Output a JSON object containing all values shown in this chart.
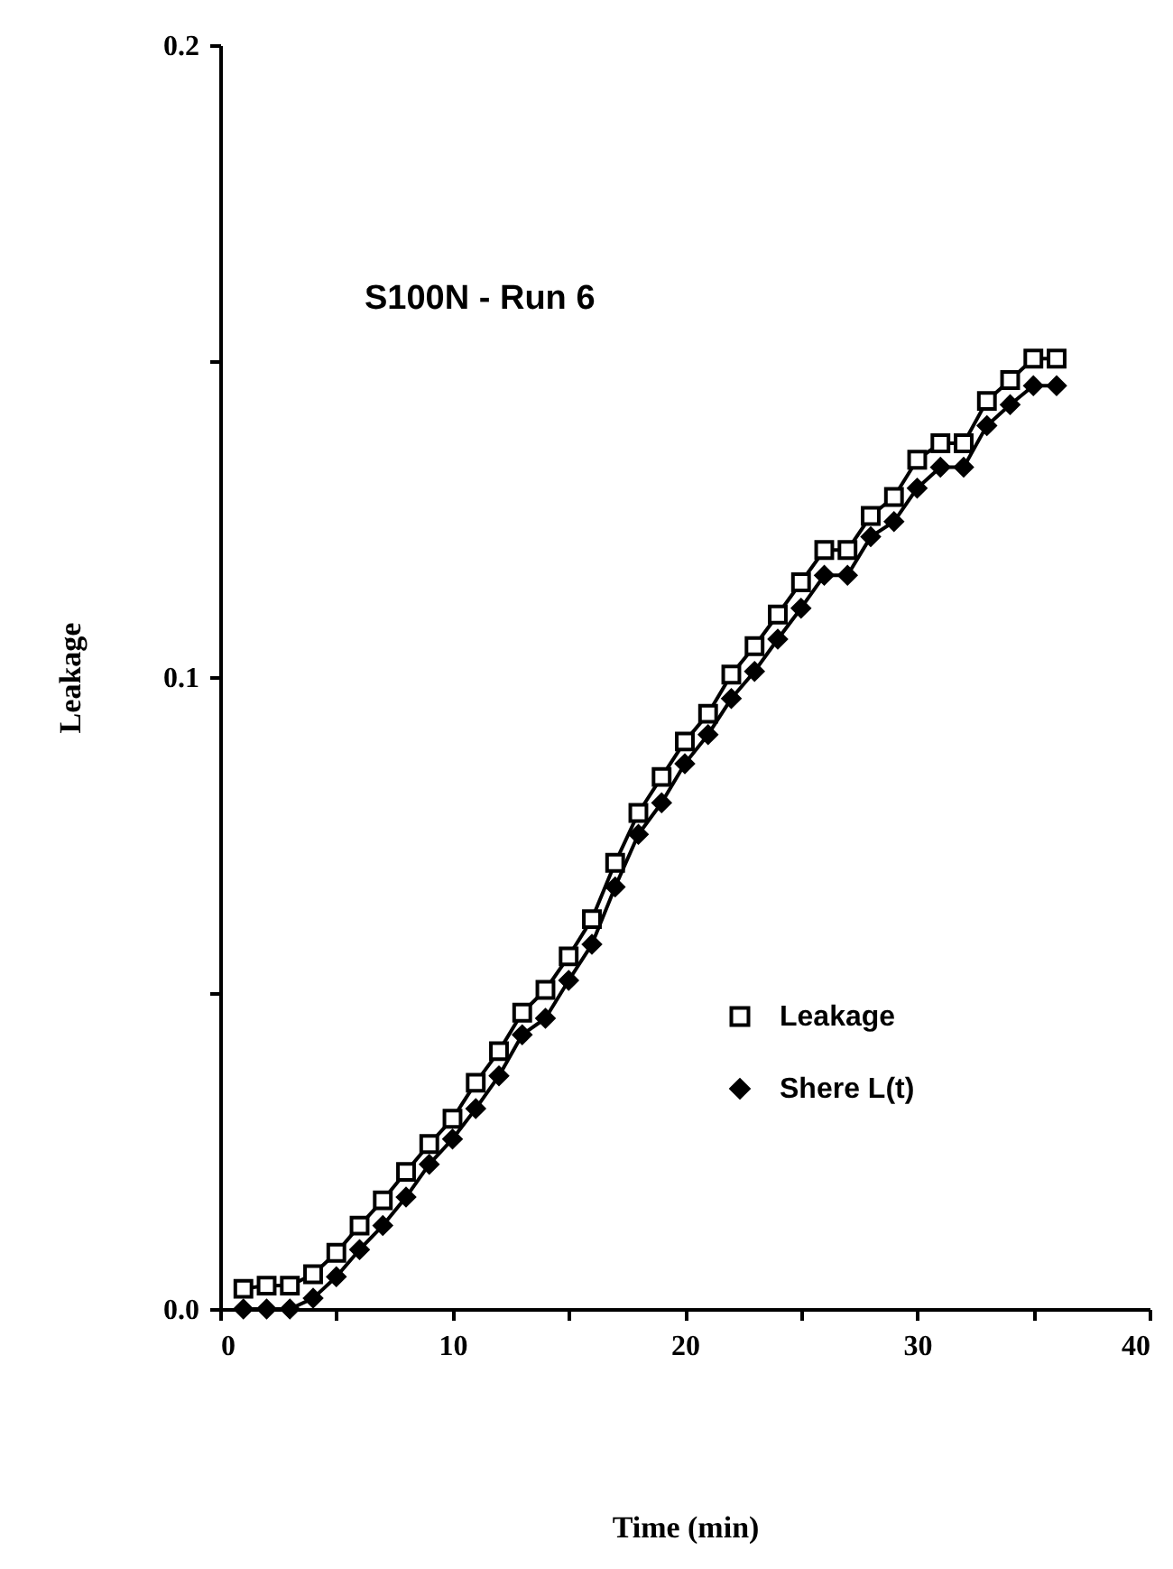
{
  "chart_data": {
    "type": "line",
    "title": "S100N - Run 6",
    "xlabel": "Time   (min)",
    "ylabel": "Leakage",
    "x": [
      1,
      2,
      3,
      4,
      5,
      6,
      7,
      8,
      9,
      10,
      11,
      12,
      13,
      14,
      15,
      16,
      17,
      18,
      19,
      20,
      21,
      22,
      23,
      24,
      25,
      26,
      27,
      28,
      29,
      30,
      31,
      32,
      33,
      34,
      35,
      36
    ],
    "series": [
      {
        "name": "Leakage",
        "color": "#000000",
        "marker": "square",
        "values": [
          0.0032,
          0.0037,
          0.0037,
          0.0055,
          0.0089,
          0.0132,
          0.0172,
          0.0217,
          0.0261,
          0.0301,
          0.0358,
          0.0408,
          0.0469,
          0.0505,
          0.0558,
          0.0617,
          0.0706,
          0.0785,
          0.0842,
          0.0898,
          0.0942,
          0.1004,
          0.1049,
          0.1099,
          0.115,
          0.1201,
          0.1201,
          0.1255,
          0.1285,
          0.1344,
          0.137,
          0.137,
          0.1437,
          0.147,
          0.1504,
          0.1504
        ]
      },
      {
        "name": "Shere L(t)",
        "color": "#000000",
        "marker": "diamond",
        "values": [
          0,
          0,
          0,
          0.0017,
          0.0051,
          0.0094,
          0.0132,
          0.0177,
          0.0229,
          0.0269,
          0.0317,
          0.0369,
          0.0434,
          0.046,
          0.052,
          0.0577,
          0.0668,
          0.0751,
          0.0801,
          0.0863,
          0.0909,
          0.0966,
          0.1009,
          0.106,
          0.1109,
          0.1161,
          0.1161,
          0.1222,
          0.1246,
          0.1299,
          0.1332,
          0.1332,
          0.1398,
          0.1431,
          0.1461,
          0.1461
        ]
      }
    ],
    "xlim": [
      0,
      40
    ],
    "xticks": [
      0,
      {
        "value": 5,
        "label": null
      },
      10,
      {
        "value": 15,
        "label": null
      },
      20,
      {
        "value": 25,
        "label": null
      },
      30,
      {
        "value": 35,
        "label": null
      },
      40
    ],
    "ylim": [
      0,
      0.2
    ],
    "yticks": [
      {
        "value": 0,
        "label": "0.0"
      },
      {
        "value": 0.05,
        "label": null
      },
      {
        "value": 0.1,
        "label": "0.1"
      },
      {
        "value": 0.15,
        "label": null
      },
      {
        "value": 0.2,
        "label": "0.2"
      }
    ],
    "grid": false,
    "legend": "bottom right",
    "line_style": "solid"
  }
}
